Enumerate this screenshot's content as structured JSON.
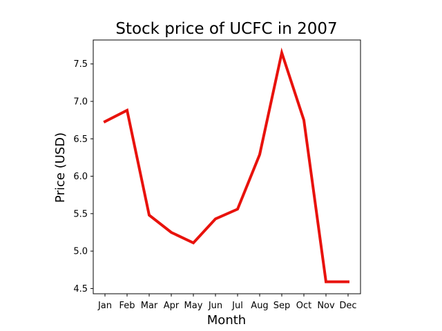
{
  "chart_data": {
    "type": "line",
    "title": "Stock price of UCFC in 2007",
    "xlabel": "Month",
    "ylabel": "Price (USD)",
    "categories": [
      "Jan",
      "Feb",
      "Mar",
      "Apr",
      "May",
      "Jun",
      "Jul",
      "Aug",
      "Sep",
      "Oct",
      "Nov",
      "Dec"
    ],
    "series": [
      {
        "values": [
          6.73,
          6.88,
          5.48,
          5.25,
          5.11,
          5.43,
          5.56,
          6.29,
          7.65,
          6.75,
          4.59,
          4.59
        ],
        "color": "#e8120c"
      }
    ],
    "ylim": [
      4.43,
      7.82
    ],
    "yticks": [
      4.5,
      5.0,
      5.5,
      6.0,
      6.5,
      7.0,
      7.5
    ],
    "ytick_labels": [
      "4.5",
      "5.0",
      "5.5",
      "6.0",
      "6.5",
      "7.0",
      "7.5"
    ],
    "grid": false,
    "legend": "none"
  }
}
